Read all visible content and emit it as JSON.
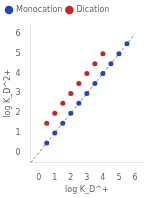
{
  "chart_data": {
    "type": "scatter",
    "x_label": "log K_D^+",
    "y_label": "log K_D^2+",
    "xlim": [
      -0.5,
      6.5
    ],
    "ylim": [
      -0.5,
      6.5
    ],
    "xticks": [
      0,
      1,
      2,
      3,
      4,
      5,
      6
    ],
    "yticks": [
      0,
      1,
      2,
      3,
      4,
      5,
      6
    ],
    "grid": false,
    "legend": "upper left",
    "series": [
      {
        "name": "Monocation",
        "color": "#2244cc",
        "marker": "circle",
        "x": [
          0.5,
          1.0,
          1.5,
          2.0,
          2.5,
          3.0,
          3.5,
          4.0,
          4.5,
          5.0,
          5.5
        ],
        "values": [
          0.5,
          1.0,
          1.5,
          2.0,
          2.5,
          3.0,
          3.5,
          4.0,
          4.5,
          5.0,
          5.5
        ]
      },
      {
        "name": "Dication",
        "color": "#cc2222",
        "marker": "circle",
        "x": [
          0.5,
          1.0,
          1.5,
          2.0,
          2.5,
          3.0,
          3.5,
          4.0
        ],
        "values": [
          1.5,
          2.0,
          2.5,
          3.0,
          3.5,
          4.0,
          4.5,
          5.0
        ]
      },
      {
        "type": "line",
        "line_style": "dashed",
        "color": "#888888",
        "x": [
          -0.5,
          6.0
        ],
        "values": [
          -0.5,
          6.0
        ]
      }
    ]
  }
}
